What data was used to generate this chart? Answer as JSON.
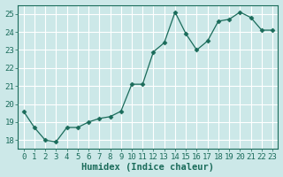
{
  "x": [
    0,
    1,
    2,
    3,
    4,
    5,
    6,
    7,
    8,
    9,
    10,
    11,
    12,
    13,
    14,
    15,
    16,
    17,
    18,
    19,
    20,
    21,
    22,
    23
  ],
  "y": [
    19.6,
    18.7,
    18.0,
    17.9,
    18.7,
    18.7,
    19.0,
    19.2,
    19.3,
    19.6,
    21.1,
    21.1,
    22.9,
    23.4,
    25.1,
    23.9,
    23.0,
    23.5,
    24.6,
    24.7,
    25.1,
    24.8,
    24.1,
    24.1
  ],
  "line_color": "#1a6b5a",
  "marker": "D",
  "marker_size": 2.5,
  "bg_color": "#cce8e8",
  "grid_color": "#ffffff",
  "xlabel": "Humidex (Indice chaleur)",
  "xlim": [
    -0.5,
    23.5
  ],
  "ylim": [
    17.5,
    25.5
  ],
  "yticks": [
    18,
    19,
    20,
    21,
    22,
    23,
    24,
    25
  ],
  "xticks": [
    0,
    1,
    2,
    3,
    4,
    5,
    6,
    7,
    8,
    9,
    10,
    11,
    12,
    13,
    14,
    15,
    16,
    17,
    18,
    19,
    20,
    21,
    22,
    23
  ],
  "tick_fontsize": 6.5,
  "xlabel_fontsize": 7.5
}
